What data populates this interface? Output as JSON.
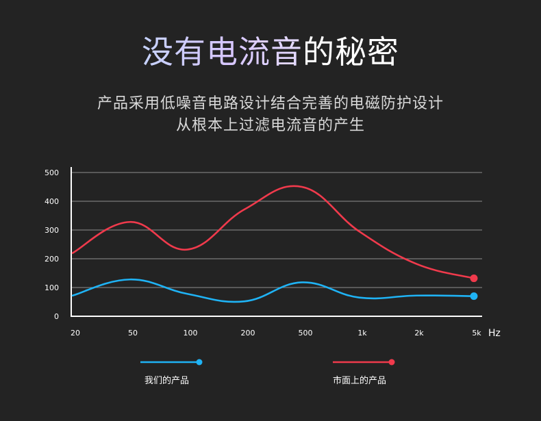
{
  "title": {
    "highlight": "没有电流音",
    "rest": "的秘密"
  },
  "subtitle": {
    "line1": "产品采用低噪音电路设计结合完善的电磁防护设计",
    "line2": "从根本上过滤电流音的产生"
  },
  "chart_data": {
    "type": "line",
    "x": [
      "20",
      "50",
      "100",
      "200",
      "500",
      "1k",
      "2k",
      "5k"
    ],
    "xunit": "Hz",
    "ylim": [
      0,
      500
    ],
    "yticks": [
      "0",
      "100",
      "200",
      "300",
      "400",
      "500"
    ],
    "grid": true,
    "legend_position": "bottom",
    "series": [
      {
        "name": "我们的产品",
        "color": "#1fb3f5",
        "values": [
          72,
          128,
          78,
          52,
          118,
          65,
          72,
          70
        ]
      },
      {
        "name": "市面上的产品",
        "color": "#f03a4c",
        "values": [
          220,
          328,
          232,
          372,
          450,
          295,
          182,
          132
        ]
      }
    ]
  }
}
